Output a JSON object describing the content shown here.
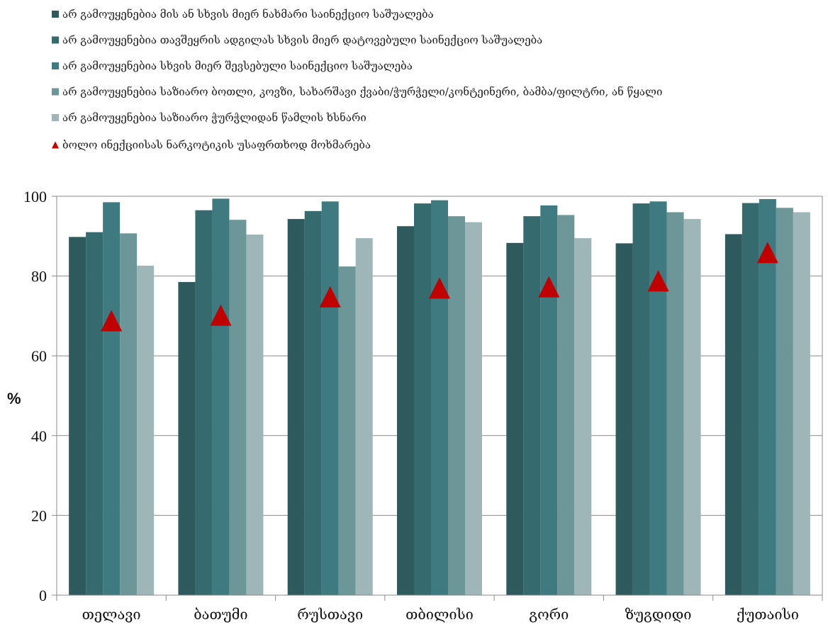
{
  "chart_data": {
    "type": "bar",
    "ylabel": "%",
    "ylim": [
      0,
      100
    ],
    "yticks": [
      0,
      20,
      40,
      60,
      80,
      100
    ],
    "grid": "horizontal",
    "legend_position": "top",
    "categories": [
      "თელავი",
      "ბათუმი",
      "რუსთავი",
      "თბილისი",
      "გორი",
      "ზუგდიდი",
      "ქუთაისი"
    ],
    "series": [
      {
        "name": "არ გამოუყენებია მის ან სხვის მიერ  ნახმარი საინექციო საშუალება",
        "color": "#2e5a5e",
        "values": [
          89.8,
          78.5,
          94.3,
          92.5,
          88.3,
          88.2,
          90.5
        ]
      },
      {
        "name": "არ გამოუყენებია თავშეყრის ადგილას სხვის მიერ დატოვებული საინექციო საშუალება",
        "color": "#356a6f",
        "values": [
          91.0,
          96.5,
          96.3,
          98.2,
          95.0,
          98.2,
          98.3
        ]
      },
      {
        "name": "არ გამოუყენებია სხვის მიერ შევსებული საინექციო საშუალება",
        "color": "#3e7a80",
        "values": [
          98.5,
          99.4,
          98.7,
          99.0,
          97.7,
          98.7,
          99.3
        ]
      },
      {
        "name": "არ გამოუყენებია საზიარო ბოთლი, კოვზი, სახარშავი ქვაბი/ჭურჭელი/კონტეინერი, ბამბა/ფილტრი, ან წყალი",
        "color": "#6c9698",
        "values": [
          90.7,
          94.1,
          82.4,
          95.0,
          95.3,
          96.0,
          97.1
        ]
      },
      {
        "name": "არ გამოუყენებია საზიარო ჭურჭლიდან წამლის ხსნარი",
        "color": "#9fb6b8",
        "values": [
          82.6,
          90.4,
          89.5,
          93.5,
          89.5,
          94.3,
          96.0
        ]
      }
    ],
    "markers": {
      "name": "ბოლო ინექციისას ნარკოტიკის უსაფრთხოდ მოხმარება",
      "shape": "triangle",
      "color": "#c00000",
      "values": [
        68.8,
        70.2,
        74.8,
        77.0,
        77.3,
        78.8,
        85.9
      ]
    }
  }
}
